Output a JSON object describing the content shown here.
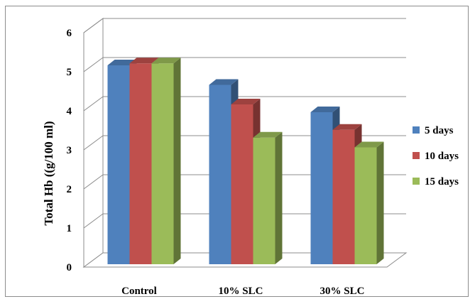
{
  "chart_data": {
    "type": "bar",
    "categories": [
      "Control",
      "10% SLC",
      "30% SLC"
    ],
    "series": [
      {
        "name": "5 days",
        "values": [
          5.2,
          4.7,
          4.0
        ],
        "color": "#4f81bd"
      },
      {
        "name": "10 days",
        "values": [
          5.25,
          4.2,
          3.55
        ],
        "color": "#c0504d"
      },
      {
        "name": "15 days",
        "values": [
          5.25,
          3.35,
          3.1
        ],
        "color": "#9bbb59"
      }
    ],
    "title": "",
    "xlabel": "",
    "ylabel": "Total Hb  ((g/100 ml)",
    "ylim": [
      0,
      6
    ],
    "yticks": [
      "0",
      "1",
      "2",
      "3",
      "4",
      "5",
      "6"
    ],
    "grid": true,
    "legend_position": "right"
  }
}
